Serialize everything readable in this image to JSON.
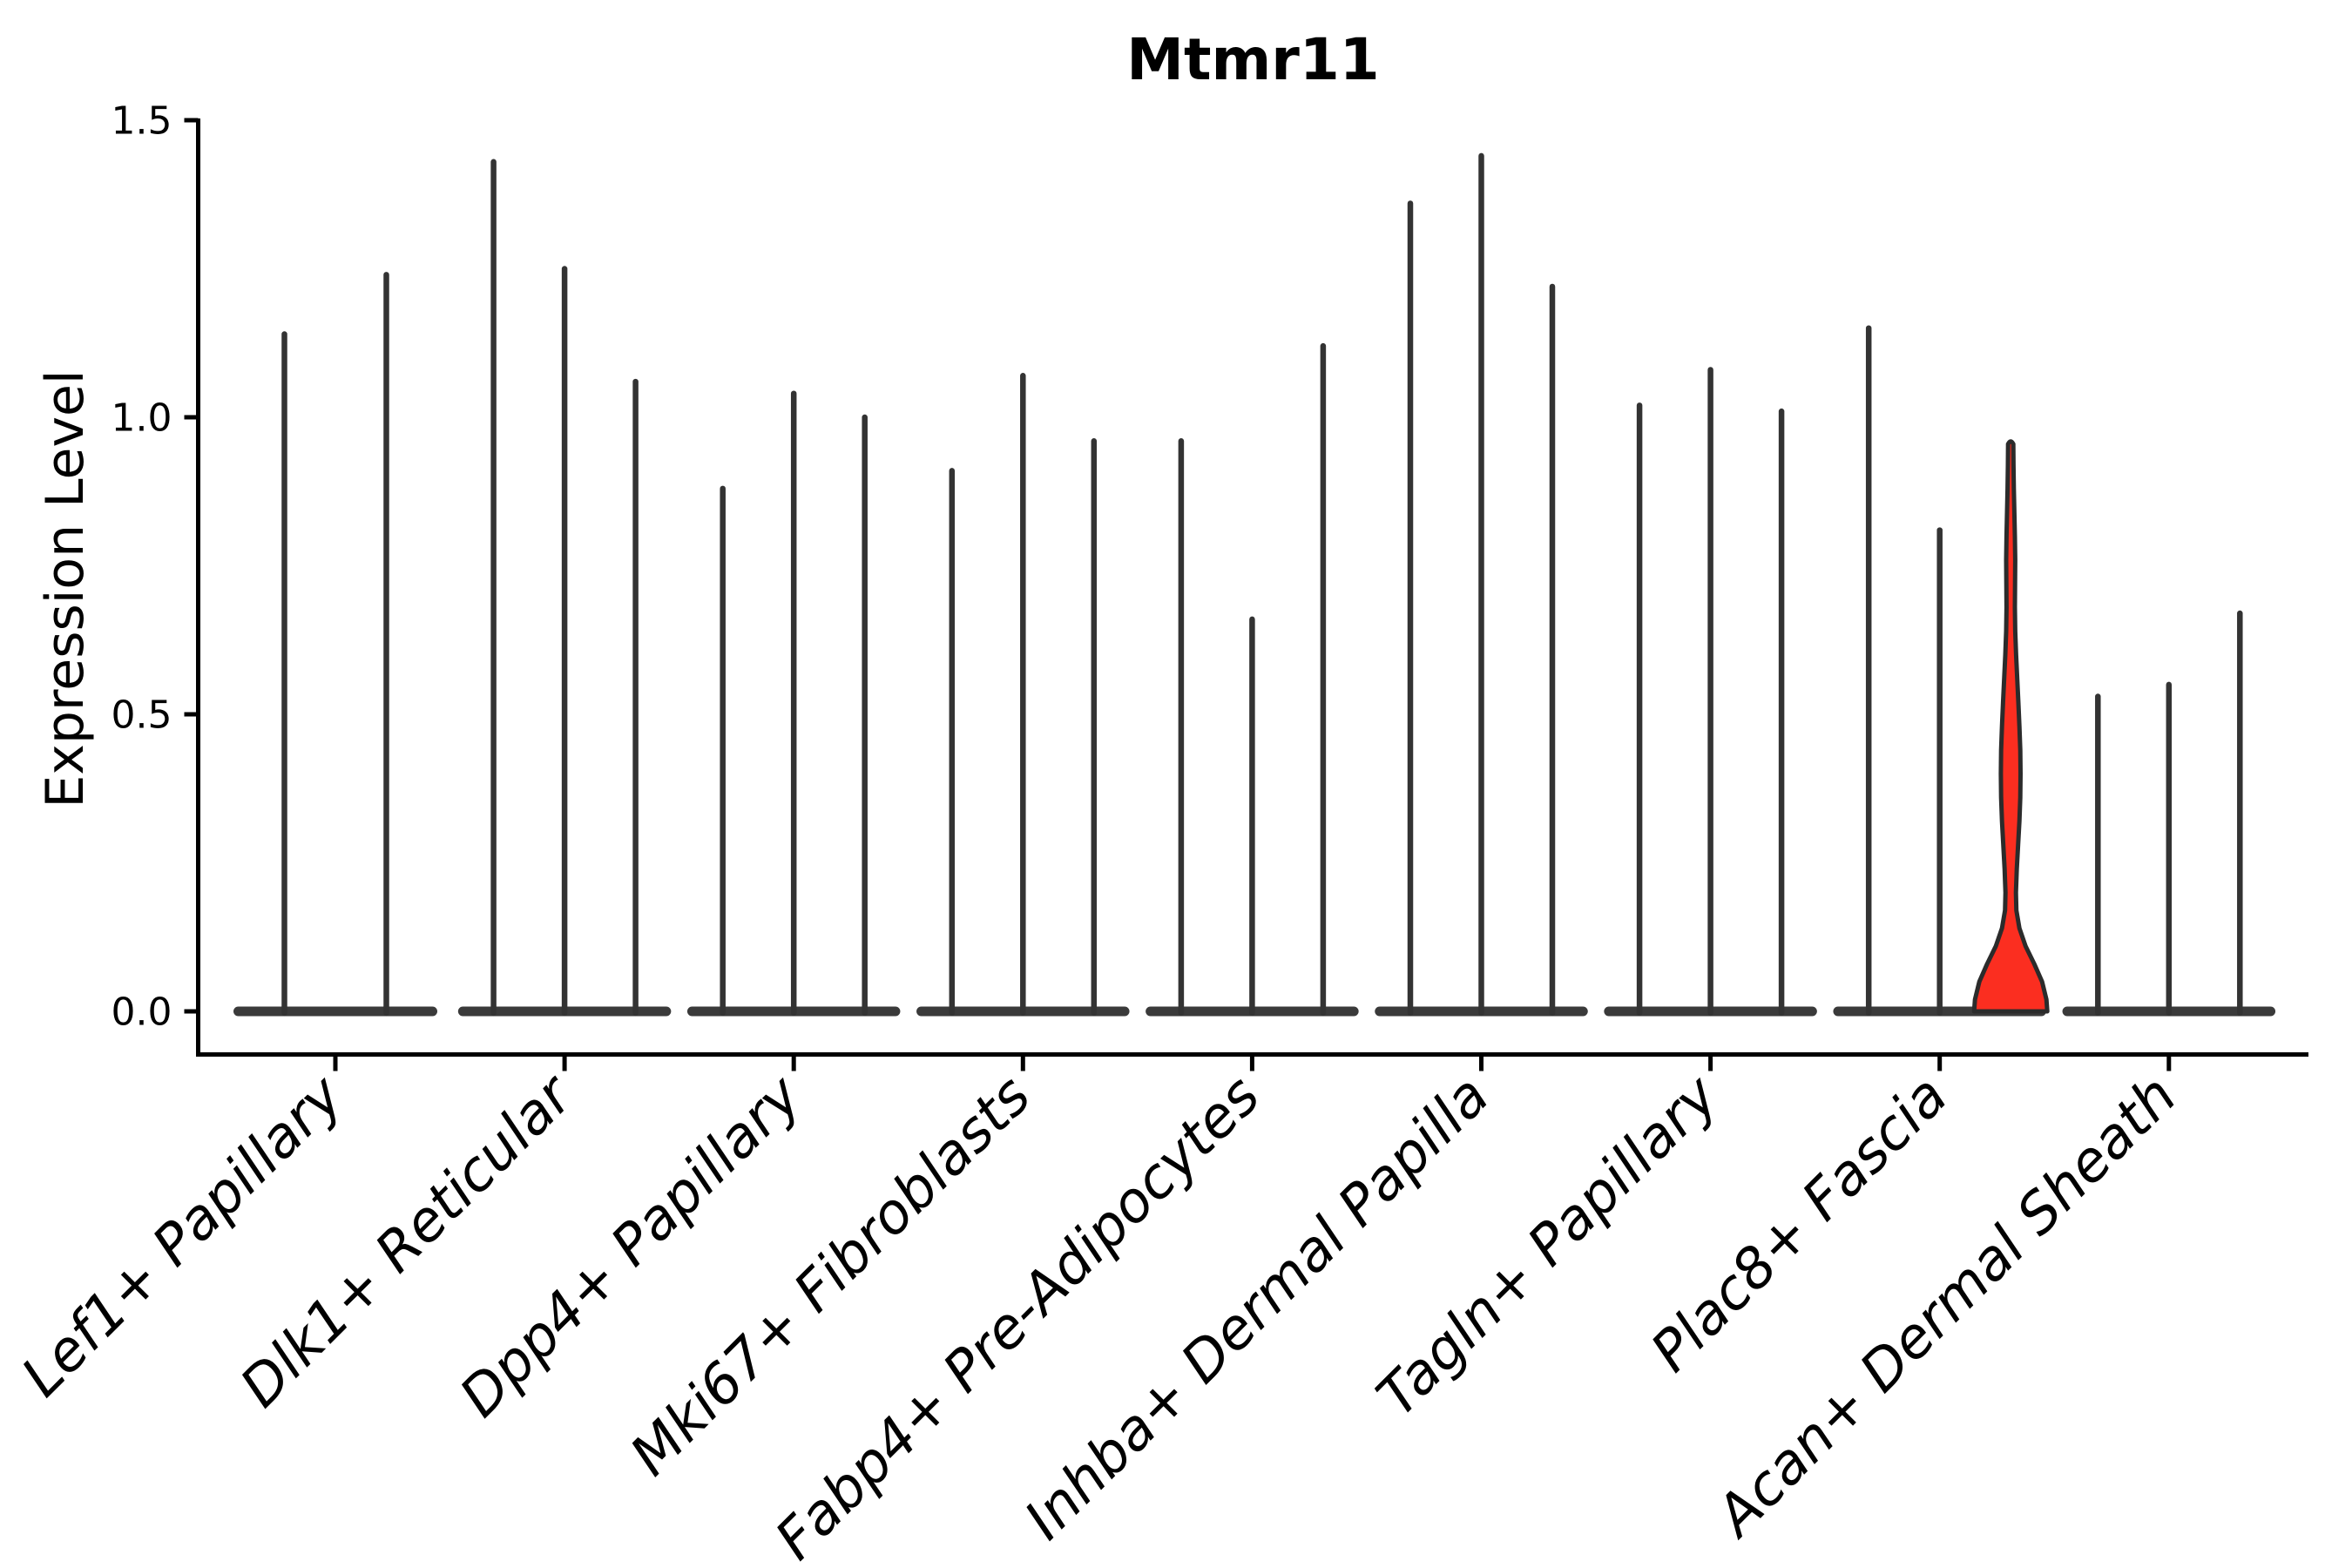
{
  "title": "Mtmr11",
  "y_axis": {
    "label": "Expression Level",
    "tick_labels": [
      "0.0",
      "0.5",
      "1.0",
      "1.5"
    ]
  },
  "chart_data": {
    "type": "violin",
    "title": "Mtmr11",
    "xlabel": "",
    "ylabel": "Expression Level",
    "ylim": [
      -0.07,
      1.5
    ],
    "y_ticks": [
      0.0,
      0.5,
      1.0,
      1.5
    ],
    "grid": false,
    "legend_position": "none",
    "x_tick_label_rotation_deg": 45,
    "x_tick_label_style": "italic",
    "categories": [
      "Lef1+ Papillary",
      "Dlk1+ Reticular",
      "Dpp4+ Papillary",
      "Mki67+ Fibroblasts",
      "Fabp4+ Pre-Adipocytes",
      "Inhba+ Dermal Papilla",
      "Tagln+ Papillary",
      "Plac8+ Fascia",
      "Acan+ Dermal Sheath"
    ],
    "series": [
      {
        "category": "Lef1+ Papillary",
        "violin_maxima": [
          1.14,
          1.24
        ]
      },
      {
        "category": "Dlk1+ Reticular",
        "violin_maxima": [
          1.43,
          1.25,
          1.06
        ]
      },
      {
        "category": "Dpp4+ Papillary",
        "violin_maxima": [
          0.88,
          1.04,
          1.0
        ]
      },
      {
        "category": "Mki67+ Fibroblasts",
        "violin_maxima": [
          0.91,
          1.07,
          0.96
        ]
      },
      {
        "category": "Fabp4+ Pre-Adipocytes",
        "violin_maxima": [
          0.96,
          0.66,
          1.12
        ]
      },
      {
        "category": "Inhba+ Dermal Papilla",
        "violin_maxima": [
          1.36,
          1.44,
          1.22
        ]
      },
      {
        "category": "Tagln+ Papillary",
        "violin_maxima": [
          1.02,
          1.08,
          1.01
        ]
      },
      {
        "category": "Plac8+ Fascia",
        "violin_maxima": [
          1.15,
          0.81,
          0.96
        ]
      },
      {
        "category": "Acan+ Dermal Sheath",
        "violin_maxima": [
          0.53,
          0.55,
          0.67
        ]
      }
    ],
    "highlighted_violin": {
      "category": "Plac8+ Fascia",
      "group_index": 7,
      "violin_index": 2,
      "max": 0.96,
      "bulge_peak_value": 0.4,
      "pinch_value": 0.17,
      "profile_value_halfwidth": [
        [
          0.0,
          42
        ],
        [
          0.02,
          41
        ],
        [
          0.05,
          36
        ],
        [
          0.08,
          27
        ],
        [
          0.11,
          17
        ],
        [
          0.14,
          10
        ],
        [
          0.17,
          6.5
        ],
        [
          0.2,
          6.0
        ],
        [
          0.24,
          7.0
        ],
        [
          0.28,
          8.5
        ],
        [
          0.32,
          10.0
        ],
        [
          0.36,
          11.0
        ],
        [
          0.4,
          11.3
        ],
        [
          0.44,
          11.0
        ],
        [
          0.48,
          10.0
        ],
        [
          0.52,
          8.8
        ],
        [
          0.56,
          7.5
        ],
        [
          0.6,
          6.2
        ],
        [
          0.64,
          5.2
        ],
        [
          0.68,
          4.8
        ],
        [
          0.72,
          5.0
        ],
        [
          0.76,
          5.2
        ],
        [
          0.8,
          4.8
        ],
        [
          0.84,
          4.2
        ],
        [
          0.88,
          3.6
        ],
        [
          0.92,
          3.2
        ],
        [
          0.955,
          3.0
        ]
      ]
    }
  },
  "style": {
    "background": "#ffffff",
    "axis_color": "#000000",
    "spike_color": "#333333",
    "base_color": "#3a3a3a",
    "violin_stroke": "#2b2b2b",
    "highlight_fill": "#fb2e20",
    "text_color": "#000000"
  }
}
